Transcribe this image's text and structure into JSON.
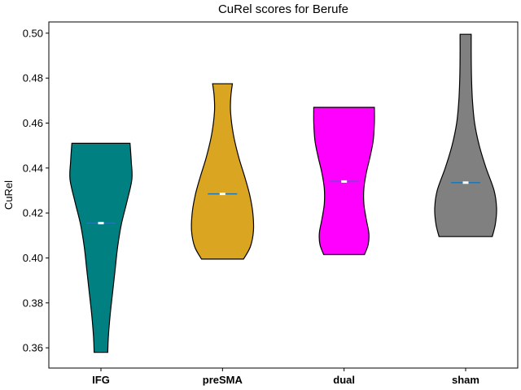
{
  "chart_data": {
    "type": "violin",
    "title": "CuRel scores for Berufe",
    "xlabel": "",
    "ylabel": "CuRel",
    "ylim": [
      0.351,
      0.505
    ],
    "yticks": [
      0.36,
      0.38,
      0.4,
      0.42,
      0.44,
      0.46,
      0.48,
      0.5
    ],
    "ytick_labels": [
      "0.36",
      "0.38",
      "0.40",
      "0.42",
      "0.44",
      "0.46",
      "0.48",
      "0.50"
    ],
    "grid": false,
    "categories": [
      "IFG",
      "preSMA",
      "dual",
      "sham"
    ],
    "violins": [
      {
        "category": "IFG",
        "color": "#008080",
        "min": 0.358,
        "max": 0.451,
        "median": 0.4155,
        "profile": [
          [
            0.358,
            0.22
          ],
          [
            0.365,
            0.24
          ],
          [
            0.375,
            0.3
          ],
          [
            0.385,
            0.38
          ],
          [
            0.395,
            0.46
          ],
          [
            0.405,
            0.54
          ],
          [
            0.415,
            0.66
          ],
          [
            0.425,
            0.84
          ],
          [
            0.435,
            1.0
          ],
          [
            0.443,
            0.98
          ],
          [
            0.451,
            0.94
          ]
        ]
      },
      {
        "category": "preSMA",
        "color": "#DAA520",
        "min": 0.3995,
        "max": 0.4775,
        "median": 0.4285,
        "profile": [
          [
            0.3995,
            0.68
          ],
          [
            0.405,
            0.9
          ],
          [
            0.412,
            1.0
          ],
          [
            0.42,
            0.98
          ],
          [
            0.428,
            0.88
          ],
          [
            0.436,
            0.72
          ],
          [
            0.445,
            0.52
          ],
          [
            0.455,
            0.35
          ],
          [
            0.465,
            0.26
          ],
          [
            0.472,
            0.27
          ],
          [
            0.4775,
            0.32
          ]
        ]
      },
      {
        "category": "dual",
        "color": "#FF00FF",
        "min": 0.4015,
        "max": 0.467,
        "median": 0.434,
        "profile": [
          [
            0.4015,
            0.66
          ],
          [
            0.406,
            0.78
          ],
          [
            0.411,
            0.8
          ],
          [
            0.417,
            0.72
          ],
          [
            0.424,
            0.64
          ],
          [
            0.431,
            0.64
          ],
          [
            0.438,
            0.72
          ],
          [
            0.445,
            0.84
          ],
          [
            0.452,
            0.94
          ],
          [
            0.46,
            0.98
          ],
          [
            0.467,
            0.98
          ]
        ]
      },
      {
        "category": "sham",
        "color": "#808080",
        "min": 0.4095,
        "max": 0.4995,
        "median": 0.4335,
        "profile": [
          [
            0.4095,
            0.86
          ],
          [
            0.415,
            0.96
          ],
          [
            0.422,
            1.0
          ],
          [
            0.43,
            0.92
          ],
          [
            0.44,
            0.66
          ],
          [
            0.45,
            0.44
          ],
          [
            0.46,
            0.29
          ],
          [
            0.47,
            0.22
          ],
          [
            0.48,
            0.19
          ],
          [
            0.49,
            0.18
          ],
          [
            0.4995,
            0.18
          ]
        ]
      }
    ]
  }
}
